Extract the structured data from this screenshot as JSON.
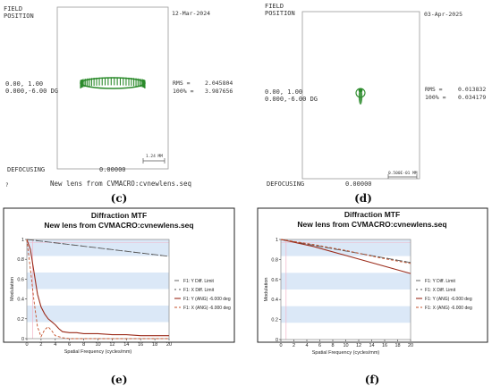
{
  "panels": {
    "c": {
      "label": "(c)",
      "field_label_1": "FIELD",
      "field_label_2": "POSITION",
      "date": "12-Mar-2024",
      "position_1": "0.00, 1.00",
      "position_2": "0.000,-6.00 DG",
      "rms_label": "RMS =",
      "rms_value": "2.045804",
      "pct_label": "100% =",
      "pct_value": "3.987656",
      "defocusing_label": "DEFOCUSING",
      "defocusing_value": "0.00000",
      "scale_text": "1.24 MM",
      "footer_mark": "?",
      "footer": "New lens from CVMACRO:cvnewlens.seq"
    },
    "d": {
      "label": "(d)",
      "field_label_1": "FIELD",
      "field_label_2": "POSITION",
      "date": "03-Apr-2025",
      "position_1": "0.00, 1.00",
      "position_2": "0.000,-6.00 DG",
      "rms_label": "RMS =",
      "rms_value": "0.013832",
      "pct_label": "100% =",
      "pct_value": "0.034179",
      "defocusing_label": "DEFOCUSING",
      "defocusing_value": "0.00000",
      "scale_text": "0.500E-01 MM"
    },
    "e": {
      "label": "(e)"
    },
    "f": {
      "label": "(f)"
    }
  },
  "colors": {
    "spot_green": "#2a8a2a",
    "diff_limit": "#555555",
    "real_y": "#9b2b1a",
    "real_x": "#c4502a",
    "band_blue": "#dbe8f7",
    "band_white": "#ffffff",
    "plot_border": "#888888",
    "pink_guide": "#f2b5c8"
  },
  "chart_data": [
    {
      "type": "line",
      "panel": "e",
      "title": "Diffraction MTF",
      "subtitle": "New lens from CVMACRO:cvnewlens.seq",
      "xlabel": "Spatial Frequency (cycles/mm)",
      "ylabel": "Modulation",
      "xlim": [
        0,
        20
      ],
      "ylim": [
        0,
        1
      ],
      "x_ticks": [
        "0",
        "2",
        "4",
        "6",
        "8",
        "10",
        "12",
        "14",
        "16",
        "18",
        "20"
      ],
      "y_ticks": [
        "0",
        "0.2",
        "0.4",
        "0.6",
        "0.8",
        "1"
      ],
      "grid": false,
      "legend_position": "right",
      "series": [
        {
          "name": "F1: Y Diff. Limit",
          "style": "dashdot",
          "x": [
            0,
            20
          ],
          "y": [
            1.0,
            0.83
          ]
        },
        {
          "name": "F1: X Diff. Limit",
          "style": "dashdot",
          "x": [
            0,
            20
          ],
          "y": [
            1.0,
            0.83
          ]
        },
        {
          "name": "F1: Y (ANG) -6.000 deg",
          "style": "solid",
          "x": [
            0,
            0.5,
            1,
            1.5,
            2,
            2.5,
            3,
            3.5,
            4,
            4.5,
            5,
            6,
            7,
            8,
            9,
            10,
            12,
            14,
            16,
            18,
            20
          ],
          "y": [
            1.0,
            0.9,
            0.67,
            0.45,
            0.32,
            0.25,
            0.2,
            0.17,
            0.14,
            0.1,
            0.07,
            0.06,
            0.06,
            0.05,
            0.05,
            0.05,
            0.04,
            0.04,
            0.03,
            0.03,
            0.03
          ]
        },
        {
          "name": "F1: X (ANG) -6.000 deg",
          "style": "dashed",
          "x": [
            0,
            0.5,
            1,
            1.5,
            2,
            2.5,
            3,
            3.5,
            4,
            5,
            6,
            8,
            10,
            12,
            14,
            16,
            18,
            20
          ],
          "y": [
            1.0,
            0.7,
            0.38,
            0.12,
            0.02,
            0.09,
            0.12,
            0.08,
            0.03,
            0.01,
            0.0,
            0.0,
            0.0,
            0.0,
            0.0,
            0.0,
            0.0,
            0.0
          ]
        }
      ]
    },
    {
      "type": "line",
      "panel": "f",
      "title": "Diffraction MTF",
      "subtitle": "New lens from CVMACRO:cvnewlens.seq",
      "xlabel": "Spatial Frequency (cycles/mm)",
      "ylabel": "Modulation",
      "xlim": [
        0,
        20
      ],
      "ylim": [
        0,
        1
      ],
      "x_ticks": [
        "0",
        "2",
        "4",
        "6",
        "8",
        "10",
        "12",
        "14",
        "16",
        "18",
        "20"
      ],
      "y_ticks": [
        "0",
        "0.2",
        "0.4",
        "0.6",
        "0.8",
        "1"
      ],
      "grid": false,
      "legend_position": "right",
      "series": [
        {
          "name": "F1: Y Diff. Limit",
          "style": "dashdot",
          "x": [
            0,
            20
          ],
          "y": [
            1.0,
            0.77
          ]
        },
        {
          "name": "F1: X Diff. Limit",
          "style": "dashdot",
          "x": [
            0,
            20
          ],
          "y": [
            1.0,
            0.77
          ]
        },
        {
          "name": "F1: Y (ANG) -6.000 deg",
          "style": "solid",
          "x": [
            0,
            5,
            10,
            15,
            20
          ],
          "y": [
            1.0,
            0.93,
            0.84,
            0.75,
            0.66
          ]
        },
        {
          "name": "F1: X (ANG) -6.000 deg",
          "style": "dashed",
          "x": [
            0,
            5,
            10,
            15,
            20
          ],
          "y": [
            1.0,
            0.95,
            0.89,
            0.82,
            0.76
          ]
        }
      ]
    }
  ]
}
